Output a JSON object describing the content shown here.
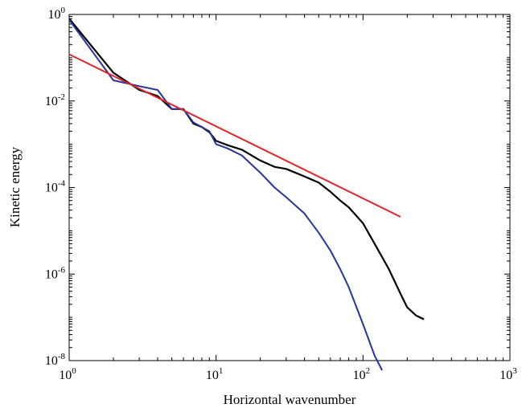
{
  "chart_data": {
    "type": "line",
    "title": "",
    "xlabel": "Horizontal wavenumber",
    "ylabel": "Kinetic energy",
    "xscale": "log",
    "yscale": "log",
    "xlim": [
      1,
      1000
    ],
    "ylim": [
      1e-08,
      1
    ],
    "grid": false,
    "x_ticks": [
      {
        "base": "10",
        "exp": "0",
        "value": 1
      },
      {
        "base": "10",
        "exp": "1",
        "value": 10
      },
      {
        "base": "10",
        "exp": "2",
        "value": 100
      },
      {
        "base": "10",
        "exp": "3",
        "value": 1000
      }
    ],
    "y_ticks": [
      {
        "base": "10",
        "exp": "0",
        "value": 1
      },
      {
        "base": "10",
        "exp": "-2",
        "value": 0.01
      },
      {
        "base": "10",
        "exp": "-4",
        "value": 0.0001
      },
      {
        "base": "10",
        "exp": "-6",
        "value": 1e-06
      },
      {
        "base": "10",
        "exp": "-8",
        "value": 1e-08
      }
    ],
    "series": [
      {
        "color": "#000000",
        "x": [
          1,
          2,
          3,
          4,
          5,
          6,
          7,
          8,
          9,
          10,
          12,
          15,
          20,
          25,
          30,
          40,
          50,
          60,
          70,
          80,
          100,
          120,
          150,
          180,
          200,
          230,
          260
        ],
        "y": [
          0.8,
          0.045,
          0.018,
          0.013,
          0.0065,
          0.0065,
          0.003,
          0.0025,
          0.0019,
          0.0012,
          0.00095,
          0.00075,
          0.00042,
          0.0003,
          0.00027,
          0.00018,
          0.00013,
          8e-05,
          5e-05,
          3.5e-05,
          1.5e-05,
          5e-06,
          1.3e-06,
          3.5e-07,
          1.7e-07,
          1.1e-07,
          9e-08
        ]
      },
      {
        "color": "#2a3399",
        "x": [
          1,
          2,
          3,
          4,
          5,
          6,
          7,
          8,
          9,
          10,
          12,
          15,
          20,
          25,
          30,
          40,
          50,
          60,
          70,
          80,
          100,
          120,
          135
        ],
        "y": [
          0.75,
          0.03,
          0.022,
          0.018,
          0.0065,
          0.0065,
          0.0032,
          0.0025,
          0.002,
          0.001,
          0.0008,
          0.00055,
          0.00022,
          0.0001,
          6e-05,
          2.5e-05,
          9e-06,
          3.5e-06,
          1.3e-06,
          5e-07,
          7e-08,
          1.3e-08,
          6e-09
        ]
      },
      {
        "color": "#e0262b",
        "x": [
          1,
          180
        ],
        "y": [
          0.12,
          2.1e-05
        ]
      }
    ]
  }
}
